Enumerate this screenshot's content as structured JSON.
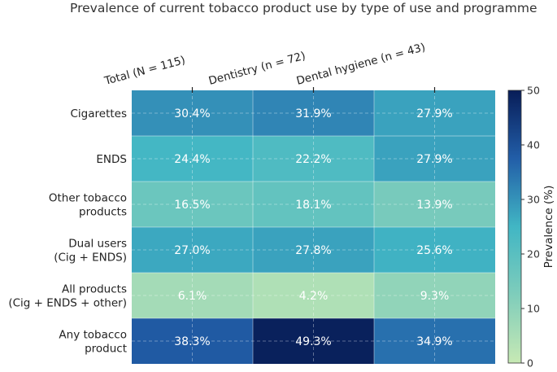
{
  "chart_data": {
    "type": "heatmap",
    "title": "Prevalence of current tobacco product use by type of use and programme",
    "columns": [
      "Total (N = 115)",
      "Dentistry (n = 72)",
      "Dental hygiene (n = 43)"
    ],
    "rows": [
      [
        "Cigarettes"
      ],
      [
        "ENDS"
      ],
      [
        "Other tobacco",
        "products"
      ],
      [
        "Dual users",
        "(Cig + ENDS)"
      ],
      [
        "All products",
        "(Cig + ENDS + other)"
      ],
      [
        "Any tobacco",
        "product"
      ]
    ],
    "values": [
      [
        30.4,
        31.9,
        27.9
      ],
      [
        24.4,
        22.2,
        27.9
      ],
      [
        16.5,
        18.1,
        13.9
      ],
      [
        27.0,
        27.8,
        25.6
      ],
      [
        6.1,
        4.2,
        9.3
      ],
      [
        38.3,
        49.3,
        34.9
      ]
    ],
    "cell_labels": [
      [
        "30.4%",
        "31.9%",
        "27.9%"
      ],
      [
        "24.4%",
        "22.2%",
        "27.9%"
      ],
      [
        "16.5%",
        "18.1%",
        "13.9%"
      ],
      [
        "27.0%",
        "27.8%",
        "25.6%"
      ],
      [
        "6.1%",
        "4.2%",
        "9.3%"
      ],
      [
        "38.3%",
        "49.3%",
        "34.9%"
      ]
    ],
    "colorbar": {
      "label": "Prevalence (%)",
      "min": 0,
      "max": 50,
      "ticks": [
        "0",
        "10",
        "20",
        "30",
        "40",
        "50"
      ],
      "colormap": "YlGnBu"
    },
    "grid": true,
    "cell_text_color": "#ffffff"
  }
}
